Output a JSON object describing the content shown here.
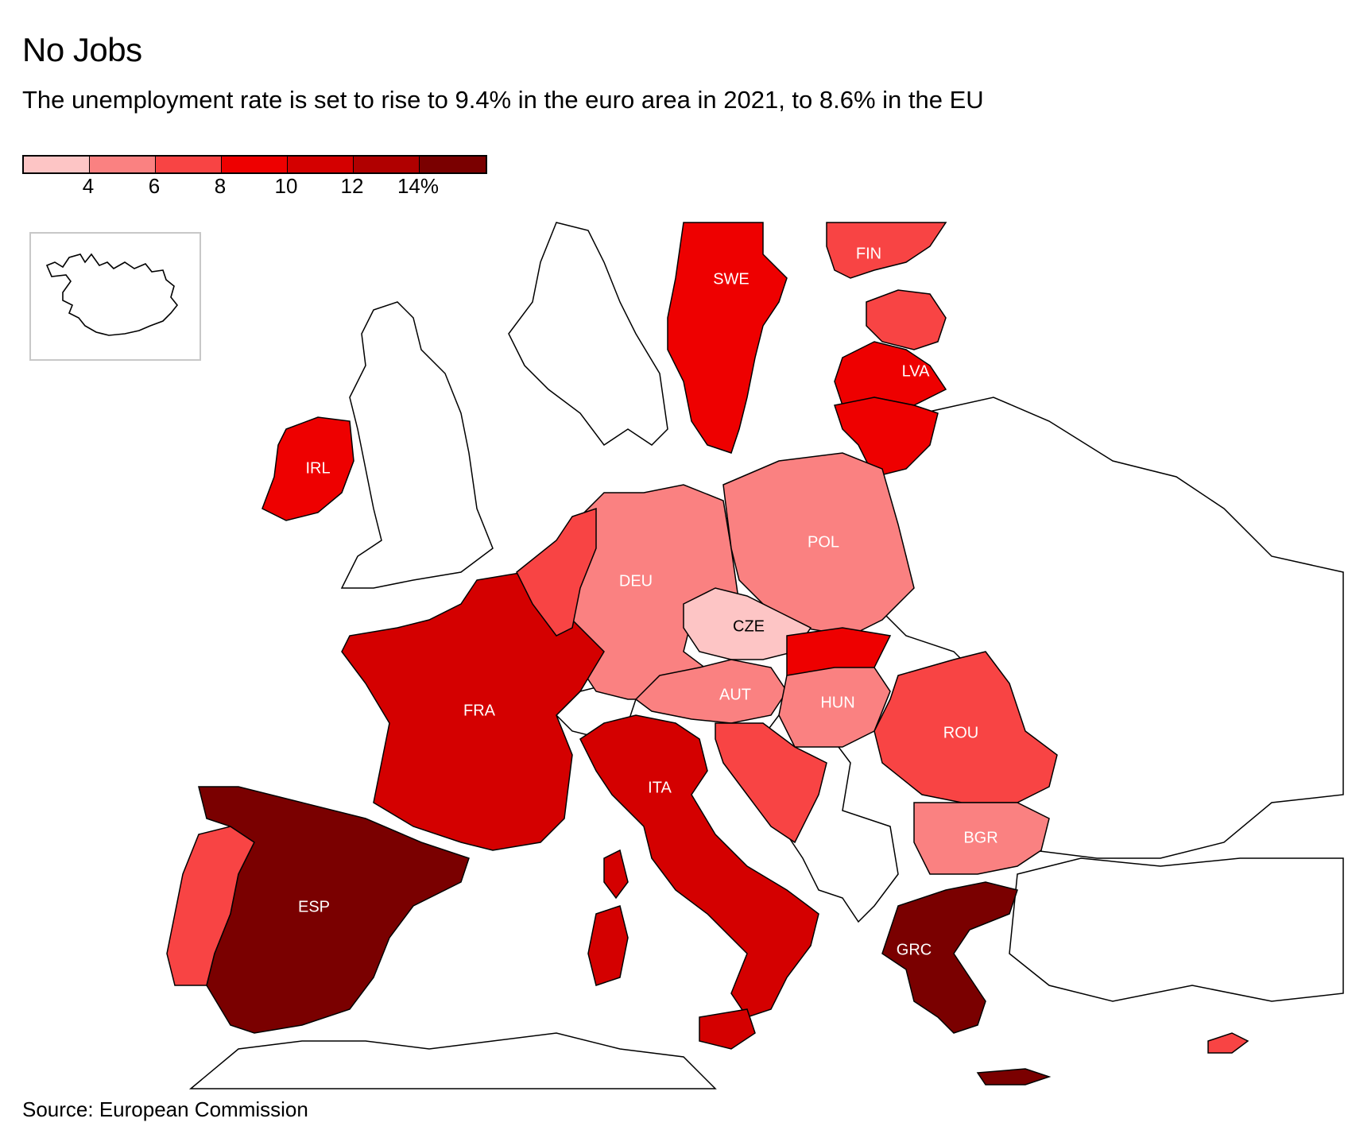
{
  "header": {
    "title": "No Jobs",
    "subtitle": "The unemployment rate is set to rise to 9.4% in the euro area in 2021, to 8.6% in the EU"
  },
  "legend": {
    "ticks": [
      "4",
      "6",
      "8",
      "10",
      "12",
      "14%"
    ],
    "colors": [
      "#fdc5c5",
      "#fa8181",
      "#f84444",
      "#ee0000",
      "#d40000",
      "#b00000",
      "#7a0000"
    ]
  },
  "map": {
    "countries": [
      {
        "code": "SWE",
        "bin": 3
      },
      {
        "code": "FIN",
        "bin": 2
      },
      {
        "code": "LVA",
        "bin": 3
      },
      {
        "code": "IRL",
        "bin": 3
      },
      {
        "code": "DEU",
        "bin": 1
      },
      {
        "code": "POL",
        "bin": 1
      },
      {
        "code": "CZE",
        "bin": 0
      },
      {
        "code": "AUT",
        "bin": 1
      },
      {
        "code": "HUN",
        "bin": 1
      },
      {
        "code": "FRA",
        "bin": 4
      },
      {
        "code": "ROU",
        "bin": 2
      },
      {
        "code": "ITA",
        "bin": 4
      },
      {
        "code": "BGR",
        "bin": 1
      },
      {
        "code": "ESP",
        "bin": 6
      },
      {
        "code": "GRC",
        "bin": 6
      }
    ],
    "inset": "Iceland"
  },
  "footer": {
    "source": "Source: European Commission"
  }
}
